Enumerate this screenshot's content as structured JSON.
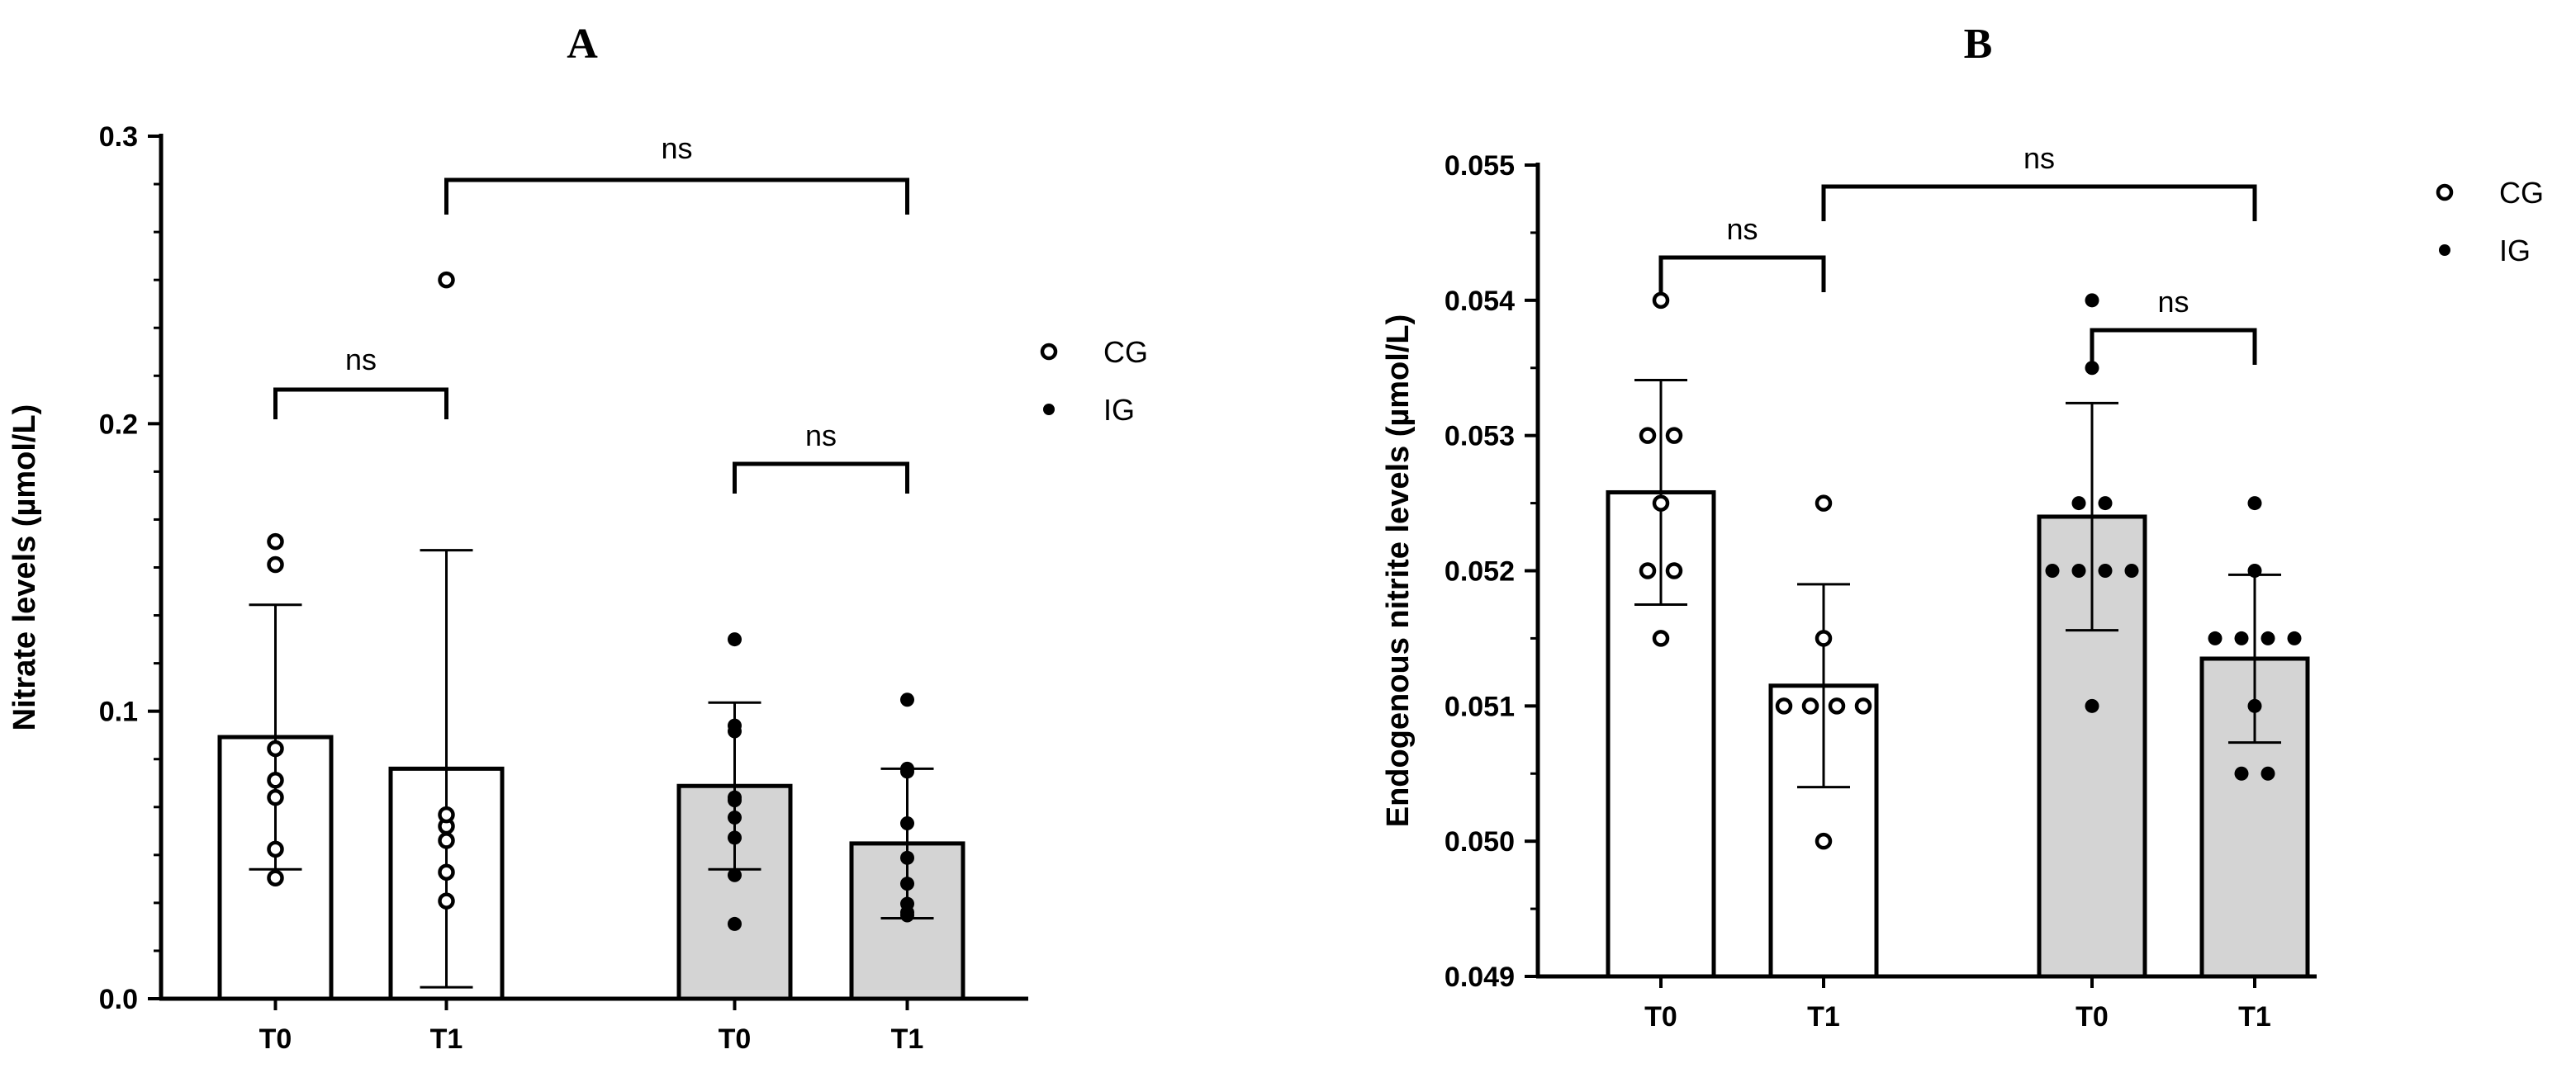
{
  "chart_data": [
    {
      "type": "bar",
      "title": "A",
      "ylabel": "Nitrate levels  (µmol/L)",
      "ylim": [
        0,
        0.3
      ],
      "yticks": [
        "0.0",
        "0.1",
        "0.2",
        "0.3"
      ],
      "categories": [
        "T0",
        "T1",
        "T0",
        "T1"
      ],
      "groups": [
        "CG",
        "CG",
        "IG",
        "IG"
      ],
      "values": [
        0.091,
        0.08,
        0.074,
        0.054
      ],
      "error_sd": [
        0.046,
        0.076,
        0.029,
        0.026
      ],
      "points": [
        [
          0.042,
          0.052,
          0.07,
          0.076,
          0.087,
          0.151,
          0.159
        ],
        [
          0.034,
          0.044,
          0.055,
          0.06,
          0.064,
          0.25
        ],
        [
          0.026,
          0.043,
          0.056,
          0.063,
          0.069,
          0.07,
          0.093,
          0.095,
          0.125
        ],
        [
          0.029,
          0.03,
          0.033,
          0.04,
          0.049,
          0.061,
          0.079,
          0.08,
          0.104
        ]
      ],
      "comparisons": [
        {
          "pair": [
            0,
            1
          ],
          "label": "ns"
        },
        {
          "pair": [
            2,
            3
          ],
          "label": "ns"
        },
        {
          "pair": [
            1,
            3
          ],
          "label": "ns"
        }
      ],
      "legend": [
        {
          "label": "CG",
          "marker": "open-circle"
        },
        {
          "label": "IG",
          "marker": "filled-circle"
        }
      ],
      "legend_position": "right",
      "colors": {
        "CG_bar": "#ffffff",
        "IG_bar": "#d4d4d4",
        "stroke": "#000000"
      }
    },
    {
      "type": "bar",
      "title": "B",
      "ylabel": "Endogenous nitrite levels (µmol/L)",
      "ylim": [
        0.049,
        0.055
      ],
      "yticks": [
        "0.049",
        "0.050",
        "0.051",
        "0.052",
        "0.053",
        "0.054",
        "0.055"
      ],
      "categories": [
        "T0",
        "T1",
        "T0",
        "T1"
      ],
      "groups": [
        "CG",
        "CG",
        "IG",
        "IG"
      ],
      "values": [
        0.05258,
        0.05115,
        0.0524,
        0.05135
      ],
      "error_sd": [
        0.00083,
        0.00075,
        0.00084,
        0.00062
      ],
      "points": [
        [
          0.0515,
          0.052,
          0.052,
          0.0525,
          0.053,
          0.053,
          0.054
        ],
        [
          0.05,
          0.051,
          0.051,
          0.051,
          0.051,
          0.0515,
          0.0525
        ],
        [
          0.051,
          0.052,
          0.052,
          0.052,
          0.052,
          0.0525,
          0.0525,
          0.0535,
          0.054
        ],
        [
          0.0505,
          0.0505,
          0.051,
          0.0515,
          0.0515,
          0.0515,
          0.0515,
          0.052,
          0.0525
        ]
      ],
      "comparisons": [
        {
          "pair": [
            0,
            1
          ],
          "label": "ns"
        },
        {
          "pair": [
            2,
            3
          ],
          "label": "ns"
        },
        {
          "pair": [
            1,
            3
          ],
          "label": "ns"
        }
      ],
      "legend": [
        {
          "label": "CG",
          "marker": "open-circle"
        },
        {
          "label": "IG",
          "marker": "filled-circle"
        }
      ],
      "legend_position": "top-right",
      "colors": {
        "CG_bar": "#ffffff",
        "IG_bar": "#d4d4d4",
        "stroke": "#000000"
      }
    }
  ]
}
